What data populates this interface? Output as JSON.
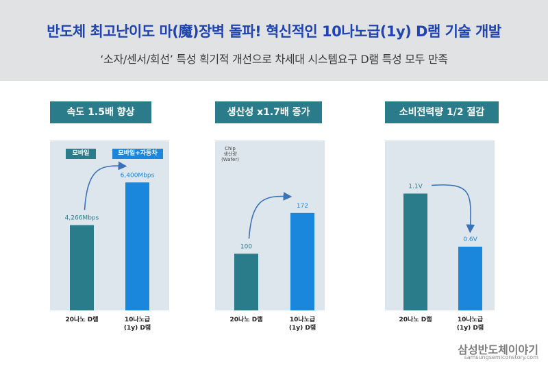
{
  "header": {
    "title": "반도체 최고난이도 마(魔)장벽 돌파! 혁신적인 10나노급(1y) D램 기술 개발",
    "subtitle": "‘소자/센서/회선’ 특성 획기적 개선으로 차세대 시스템요구 D램 특성 모두 만족"
  },
  "brand": {
    "name": "삼성반도체이야기",
    "url": "samsungsemiconstory.com"
  },
  "colors": {
    "header_bg": "#e1e2e4",
    "panel_header": "#2b7c8a",
    "panel_bg": "#dde6ec",
    "bar_old": "#2b7c8a",
    "bar_new": "#1a86dc",
    "arrow": "#3b73b6"
  },
  "chart_data": [
    {
      "type": "bar",
      "title": "속도 1.5배 향상",
      "categories": [
        "20나노 D램",
        "10나노급\n(1y) D램"
      ],
      "values": [
        4266,
        6400
      ],
      "labels": [
        "4,266Mbps",
        "6,400Mbps"
      ],
      "legend": [
        "모바일",
        "모바일+자동차"
      ],
      "note": "",
      "ylim": [
        0,
        8500
      ]
    },
    {
      "type": "bar",
      "title": "생산성 x1.7배 증가",
      "categories": [
        "20나노 D램",
        "10나노급\n(1y) D램"
      ],
      "values": [
        100,
        172
      ],
      "labels": [
        "100",
        "172"
      ],
      "legend": [],
      "note": "Chip\n생산량\n(Wafer)",
      "ylim": [
        0,
        300
      ]
    },
    {
      "type": "bar",
      "title": "소비전력량 1/2 절감",
      "categories": [
        "20나노 D램",
        "10나노급\n(1y) D램"
      ],
      "values": [
        1.1,
        0.6
      ],
      "labels": [
        "1.1V",
        "0.6V"
      ],
      "legend": [],
      "note": "",
      "ylim": [
        0,
        1.6
      ]
    }
  ]
}
